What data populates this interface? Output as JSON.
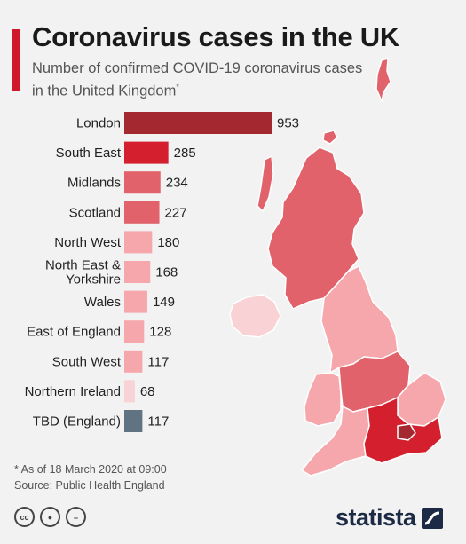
{
  "header": {
    "title": "Coronavirus cases in the UK",
    "subtitle": "Number of confirmed COVID-19 coronavirus cases in the United Kingdom",
    "subtitle_mark": "*"
  },
  "chart_data": {
    "type": "bar",
    "orientation": "horizontal",
    "title": "Coronavirus cases in the UK",
    "categories": [
      "London",
      "South East",
      "Midlands",
      "Scotland",
      "North West",
      "North East & Yorkshire",
      "Wales",
      "East of England",
      "South West",
      "Northern Ireland",
      "TBD (England)"
    ],
    "category_lines": [
      [
        "London"
      ],
      [
        "South East"
      ],
      [
        "Midlands"
      ],
      [
        "Scotland"
      ],
      [
        "North West"
      ],
      [
        "North East &",
        "Yorkshire"
      ],
      [
        "Wales"
      ],
      [
        "East of England"
      ],
      [
        "South West"
      ],
      [
        "Northern Ireland"
      ],
      [
        "TBD (England)"
      ]
    ],
    "values": [
      953,
      285,
      234,
      227,
      180,
      168,
      149,
      128,
      117,
      68,
      117
    ],
    "value_labels": [
      "953",
      "285",
      "234",
      "227",
      "180",
      "168",
      "149",
      "128",
      "117",
      "68",
      "117"
    ],
    "colors": [
      "#a3282f",
      "#d41f2e",
      "#e1626a",
      "#e1626a",
      "#f6a7ac",
      "#f6a7ac",
      "#f6a7ac",
      "#f6a7ac",
      "#f6a7ac",
      "#f8d2d4",
      "#5f7383"
    ],
    "xlim": [
      0,
      953
    ],
    "grid": false,
    "legend": "none"
  },
  "map_colors": {
    "scotland": "#e1626a",
    "northern_ireland": "#f8d2d4",
    "north_england": "#f6a7ac",
    "wales": "#f6a7ac",
    "midlands": "#e1626a",
    "east_of_england": "#f6a7ac",
    "south_west": "#f6a7ac",
    "south_east": "#d41f2e",
    "london": "#a3282f",
    "region_border": "#ffffff"
  },
  "footer": {
    "footnote": "* As of 18 March 2020 at 09:00",
    "source": "Source: Public Health England",
    "license_icons": [
      "cc-icon",
      "person-icon",
      "equals-icon"
    ],
    "license_glyphs": [
      "cc",
      "●",
      "="
    ],
    "brand": "statista",
    "brand_color": "#1c2a45",
    "accent_color": "#d0182b"
  }
}
